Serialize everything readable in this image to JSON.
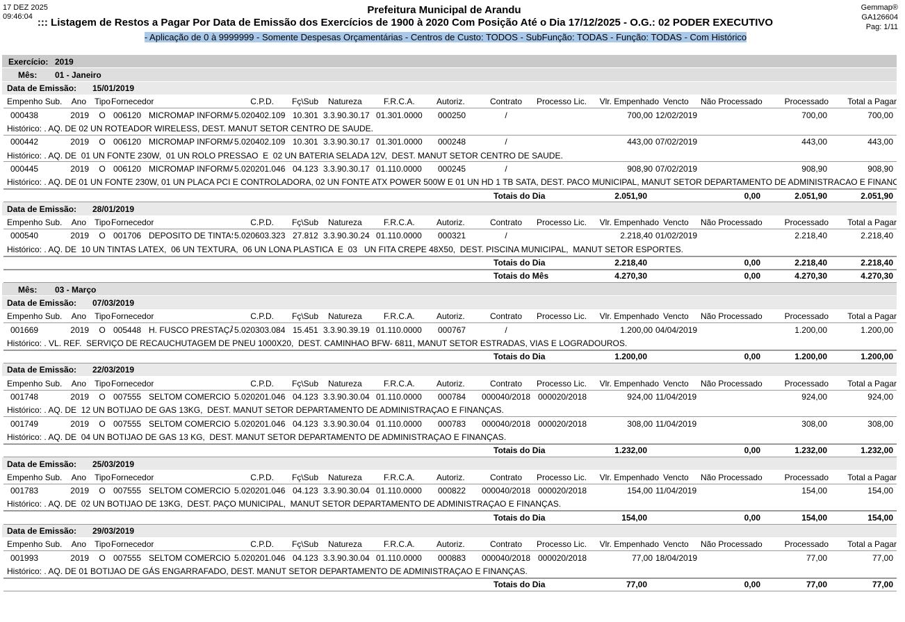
{
  "header": {
    "date": "17 DEZ 2025",
    "time": "09:46:04",
    "organization": "Prefeitura Municipal de Arandu",
    "title": "::: Listagem de Restos a Pagar Por Data de Emissão dos Exercícios de 1900 à 2020 Com Posição Até o Dia 17/12/2025 - O.G.: 02 PODER EXECUTIVO",
    "subtitle": "- Aplicação de 0 à 9999999 - Somente Despesas Orçamentárias - Centros de Custo: TODOS - SubFunção: TODAS - Função: TODAS - Com Histórico",
    "system": "Gemmap®",
    "code": "GA126604",
    "page": "Pag: 1/11"
  },
  "labels": {
    "exercise": "Exercício:",
    "month": "Mês:",
    "date": "Data de Emissão:",
    "day_totals": "Totais do Dia",
    "month_totals": "Totais do Mês"
  },
  "columns": [
    "Empenho Sub.",
    "Ano",
    "Tipo",
    "Fornecedor",
    "C.P.D.",
    "Fç\\Sub",
    "Natureza",
    "F.R.C.A.",
    "Autoriz.",
    "Contrato",
    "Processo Lic.",
    "Vlr. Empenhado",
    "Vencto",
    "Não Processado",
    "Processado",
    "Total a Pagar"
  ],
  "exercise": "2019",
  "months": [
    {
      "name": "01 - Janeiro",
      "dates": [
        {
          "date": "15/01/2019",
          "entries": [
            {
              "empenho": "000438",
              "ano": "2019",
              "tipo": "O",
              "fornecedor_cod": "006120",
              "fornecedor": "MICROMAP INFORMATICA",
              "cpd": "5.020402.109",
              "funcao": "10.301",
              "natureza": "3.3.90.30.17",
              "frca": "01.301.0000",
              "autoriz": "000250",
              "contrato": "/",
              "valor": "700,00",
              "vencto": "12/02/2019",
              "processado": "700,00",
              "total": "700,00",
              "historico": "Histórico: . AQ. DE 02 UN ROTEADOR WIRELESS, DEST. MANUT SETOR CENTRO DE SAUDE."
            },
            {
              "empenho": "000442",
              "ano": "2019",
              "tipo": "O",
              "fornecedor_cod": "006120",
              "fornecedor": "MICROMAP INFORMATICA",
              "cpd": "5.020402.109",
              "funcao": "10.301",
              "natureza": "3.3.90.30.17",
              "frca": "01.301.0000",
              "autoriz": "000248",
              "contrato": "/",
              "valor": "443,00",
              "vencto": "07/02/2019",
              "processado": "443,00",
              "total": "443,00",
              "historico": "Histórico: . AQ. DE  01 UN FONTE 230W,  01 UN ROLO PRESSAO  E  02 UN BATERIA SELADA 12V,  DEST. MANUT SETOR CENTRO DE SAUDE."
            },
            {
              "empenho": "000445",
              "ano": "2019",
              "tipo": "O",
              "fornecedor_cod": "006120",
              "fornecedor": "MICROMAP INFORMATICA",
              "cpd": "5.020201.046",
              "funcao": "04.123",
              "natureza": "3.3.90.30.17",
              "frca": "01.110.0000",
              "autoriz": "000245",
              "contrato": "/",
              "valor": "908,90",
              "vencto": "07/02/2019",
              "processado": "908,90",
              "total": "908,90",
              "historico": "Histórico: . AQ. DE 01 UN FONTE 230W, 01 UN PLACA PCI E CONTROLADORA, 02 UN FONTE ATX POWER 500W E 01 UN HD 1 TB SATA, DEST. PACO MUNICIPAL, MANUT SETOR DEPARTAMENTO DE ADMINISTRACAO E FINANCAS."
            }
          ],
          "totals": {
            "empenhado": "2.051,90",
            "nao_processado": "0,00",
            "processado": "2.051,90",
            "total": "2.051,90"
          }
        },
        {
          "date": "28/01/2019",
          "entries": [
            {
              "empenho": "000540",
              "ano": "2019",
              "tipo": "O",
              "fornecedor_cod": "001706",
              "fornecedor": "DEPOSITO DE TINTAS",
              "cpd": "5.020603.323",
              "funcao": "27.812",
              "natureza": "3.3.90.30.24",
              "frca": "01.110.0000",
              "autoriz": "000321",
              "contrato": "/",
              "valor": "2.218,40",
              "vencto": "01/02/2019",
              "processado": "2.218,40",
              "total": "2.218,40",
              "historico": "Histórico: . AQ. DE  10 UN TINTAS LATEX,  06 UN TEXTURA,  06 UN LONA PLASTICA  E  03   UN FITA CREPE 48X50,  DEST. PISCINA MUNICIPAL,  MANUT SETOR ESPORTES."
            }
          ],
          "totals": {
            "empenhado": "2.218,40",
            "nao_processado": "0,00",
            "processado": "2.218,40",
            "total": "2.218,40"
          }
        }
      ],
      "totals": {
        "empenhado": "4.270,30",
        "nao_processado": "0,00",
        "processado": "4.270,30",
        "total": "4.270,30"
      }
    },
    {
      "name": "03 - Março",
      "dates": [
        {
          "date": "07/03/2019",
          "entries": [
            {
              "empenho": "001669",
              "ano": "2019",
              "tipo": "O",
              "fornecedor_cod": "005448",
              "fornecedor": "H. FUSCO PRESTAÇÃO",
              "cpd": "5.020303.084",
              "funcao": "15.451",
              "natureza": "3.3.90.39.19",
              "frca": "01.110.0000",
              "autoriz": "000767",
              "contrato": "/",
              "valor": "1.200,00",
              "vencto": "04/04/2019",
              "processado": "1.200,00",
              "total": "1.200,00",
              "historico": "Histórico: . VL. REF.  SERVIÇO DE RECAUCHUTAGEM DE PNEU 1000X20,  DEST. CAMINHAO BFW- 6811, MANUT SETOR ESTRADAS, VIAS E LOGRADOUROS."
            }
          ],
          "totals": {
            "empenhado": "1.200,00",
            "nao_processado": "0,00",
            "processado": "1.200,00",
            "total": "1.200,00"
          }
        },
        {
          "date": "22/03/2019",
          "entries": [
            {
              "empenho": "001748",
              "ano": "2019",
              "tipo": "O",
              "fornecedor_cod": "007555",
              "fornecedor": "SELTOM COMERCIO",
              "cpd": "5.020201.046",
              "funcao": "04.123",
              "natureza": "3.3.90.30.04",
              "frca": "01.110.0000",
              "autoriz": "000784",
              "contrato": "000040/2018",
              "processo": "000020/2018",
              "valor": "924,00",
              "vencto": "11/04/2019",
              "processado": "924,00",
              "total": "924,00",
              "historico": "Histórico: . AQ. DE  12 UN BOTIJAO DE GAS 13KG,  DEST. MANUT SETOR DEPARTAMENTO DE ADMINISTRAÇAO E FINANÇAS."
            },
            {
              "empenho": "001749",
              "ano": "2019",
              "tipo": "O",
              "fornecedor_cod": "007555",
              "fornecedor": "SELTOM COMERCIO",
              "cpd": "5.020201.046",
              "funcao": "04.123",
              "natureza": "3.3.90.30.04",
              "frca": "01.110.0000",
              "autoriz": "000783",
              "contrato": "000040/2018",
              "processo": "000020/2018",
              "valor": "308,00",
              "vencto": "11/04/2019",
              "processado": "308,00",
              "total": "308,00",
              "historico": "Histórico: . AQ. DE  04 UN BOTIJAO DE GAS 13 KG,  DEST. MANUT SETOR DEPARTAMENTO DE ADMINISTRAÇAO E FINANÇAS."
            }
          ],
          "totals": {
            "empenhado": "1.232,00",
            "nao_processado": "0,00",
            "processado": "1.232,00",
            "total": "1.232,00"
          }
        },
        {
          "date": "25/03/2019",
          "entries": [
            {
              "empenho": "001783",
              "ano": "2019",
              "tipo": "O",
              "fornecedor_cod": "007555",
              "fornecedor": "SELTOM COMERCIO",
              "cpd": "5.020201.046",
              "funcao": "04.123",
              "natureza": "3.3.90.30.04",
              "frca": "01.110.0000",
              "autoriz": "000822",
              "contrato": "000040/2018",
              "processo": "000020/2018",
              "valor": "154,00",
              "vencto": "11/04/2019",
              "processado": "154,00",
              "total": "154,00",
              "historico": "Histórico: . AQ. DE  02 UN BOTIJAO DE 13KG,  DEST. PAÇO MUNICIPAL,  MANUT SETOR DEPARTAMENTO DE ADMINISTRAÇAO E FINANÇAS."
            }
          ],
          "totals": {
            "empenhado": "154,00",
            "nao_processado": "0,00",
            "processado": "154,00",
            "total": "154,00"
          }
        },
        {
          "date": "29/03/2019",
          "entries": [
            {
              "empenho": "001993",
              "ano": "2019",
              "tipo": "O",
              "fornecedor_cod": "007555",
              "fornecedor": "SELTOM COMERCIO",
              "cpd": "5.020201.046",
              "funcao": "04.123",
              "natureza": "3.3.90.30.04",
              "frca": "01.110.0000",
              "autoriz": "000883",
              "contrato": "000040/2018",
              "processo": "000020/2018",
              "valor": "77,00",
              "vencto": "18/04/2019",
              "processado": "77,00",
              "total": "77,00",
              "historico": "Histórico: . AQ. DE 01 BOTIJAO DE GÁS ENGARRAFADO, DEST. MANUT SETOR DEPARTAMENTO DE ADMINISTRAÇAO E FINANÇAS."
            }
          ],
          "totals": {
            "empenhado": "77,00",
            "nao_processado": "0,00",
            "processado": "77,00",
            "total": "77,00"
          }
        }
      ]
    }
  ]
}
